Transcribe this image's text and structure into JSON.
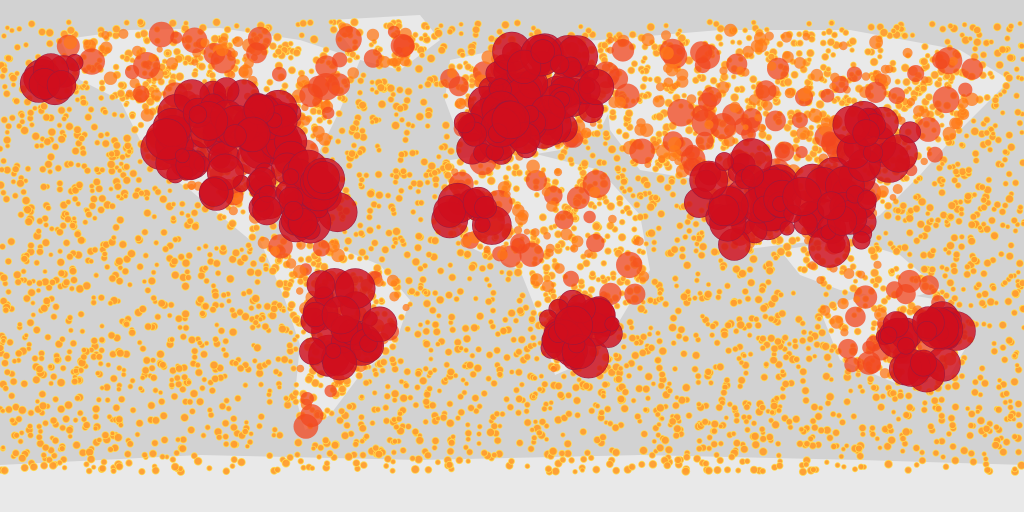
{
  "map": {
    "projection": "equirectangular",
    "colors": {
      "ocean": "#d2d2d2",
      "land": "#e9e9e9",
      "point_low_fill": "#ff9d2e",
      "point_low_stroke": "#ffd84d",
      "point_mid": "#ff7a1a",
      "point_midhigh": "#f2471f",
      "point_high": "#cf0f1d",
      "point_high_stroke": "#9a1a3e"
    },
    "layers": [
      {
        "name": "background",
        "icon": "map-background"
      },
      {
        "name": "point-density",
        "icon": "circle-marker"
      }
    ]
  }
}
